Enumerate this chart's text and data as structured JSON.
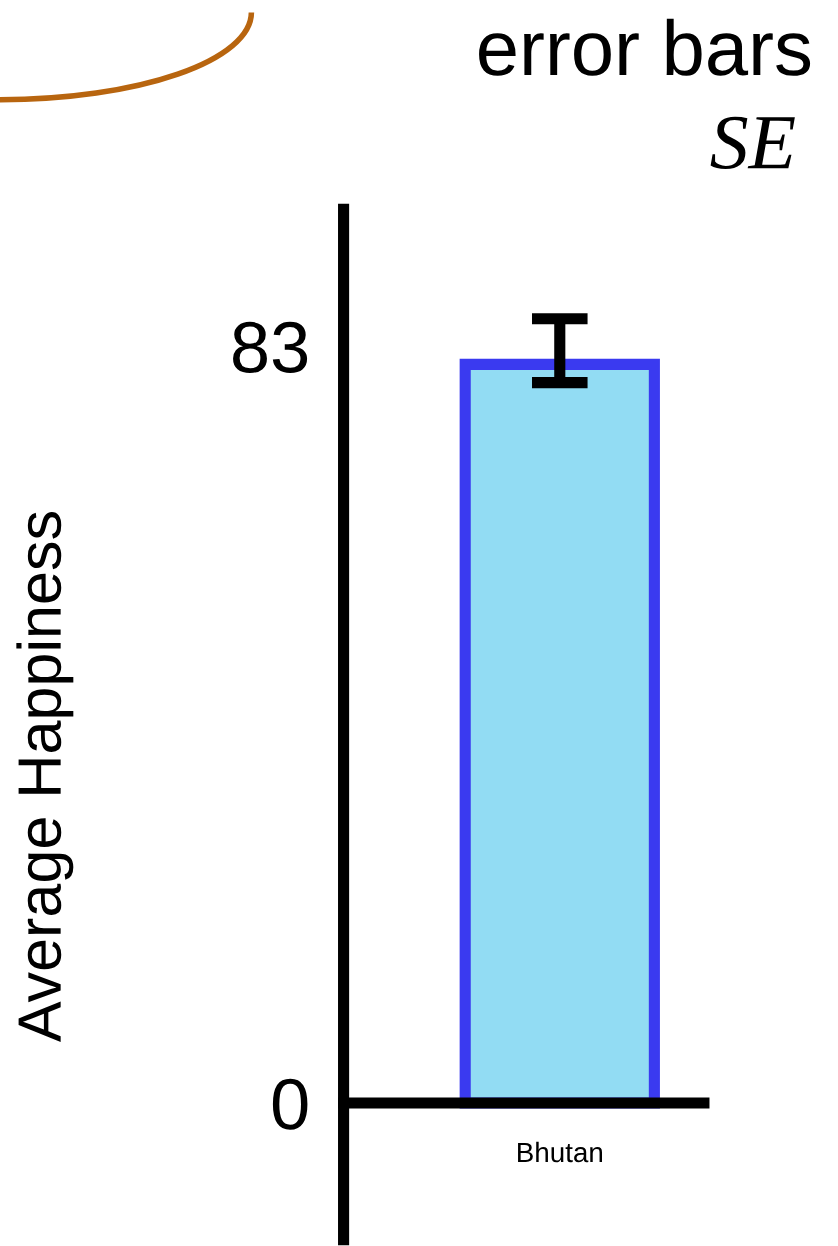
{
  "chart_data": {
    "type": "bar",
    "title": "error bars",
    "ylabel": "Average Happiness",
    "annotations": [
      "SE"
    ],
    "categories": [
      "Bhutan"
    ],
    "values": [
      81
    ],
    "errors": [
      [
        79,
        86
      ]
    ],
    "color": "#92dcf3",
    "ylim": [
      -15,
      98
    ],
    "yticks": [
      0,
      83
    ],
    "grid": false,
    "legend": false
  }
}
